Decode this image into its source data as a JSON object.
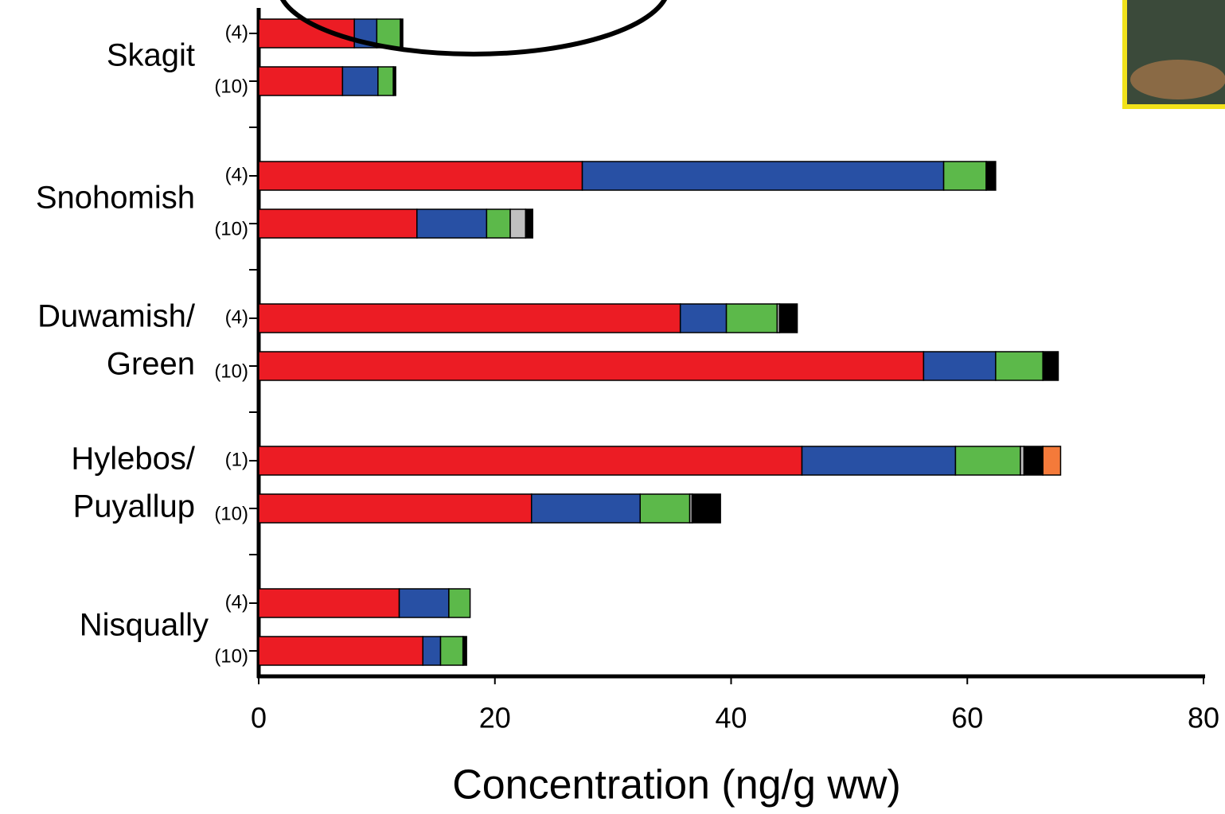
{
  "chart_data": {
    "type": "stacked-hbar",
    "x_label": "Concentration (ng/g ww)",
    "groups": [
      {
        "lines": [
          "Skagit"
        ]
      },
      {
        "lines": [
          "Snohomish"
        ]
      },
      {
        "lines": [
          "Duwamish/",
          "Green"
        ]
      },
      {
        "lines": [
          "Hylebos/",
          "Puyallup"
        ]
      },
      {
        "lines": [
          "Nisqually"
        ]
      }
    ],
    "categories": [
      "(4)",
      "(10)",
      "(4)",
      "(10)",
      "(4)",
      "(10)",
      "(1)",
      "(10)",
      "(4)",
      "(10)"
    ],
    "series": [
      {
        "color": "#ec1c24",
        "values": [
          8.1,
          7.1,
          27.4,
          13.4,
          35.7,
          56.3,
          46.0,
          23.1,
          11.9,
          13.9
        ]
      },
      {
        "color": "#2850a4",
        "values": [
          1.9,
          3.0,
          30.6,
          5.9,
          3.9,
          6.1,
          13.0,
          9.2,
          4.2,
          1.5
        ]
      },
      {
        "color": "#5cb94a",
        "values": [
          2.0,
          1.3,
          3.6,
          2.0,
          4.3,
          4.0,
          5.5,
          4.2,
          1.8,
          1.9
        ]
      },
      {
        "color": "#c0c0c0",
        "values": [
          null,
          null,
          null,
          1.3,
          0.2,
          null,
          0.3,
          0.2,
          null,
          null
        ]
      },
      {
        "color": "#000000",
        "values": [
          0.2,
          0.2,
          0.8,
          0.6,
          1.5,
          1.3,
          1.6,
          2.4,
          null,
          0.3
        ]
      },
      {
        "color": "#f47a3a",
        "values": [
          null,
          null,
          null,
          null,
          null,
          null,
          1.5,
          null,
          null,
          null
        ]
      }
    ],
    "xlim": [
      0,
      80
    ],
    "xticks": [
      0,
      20,
      40,
      60,
      80
    ]
  }
}
